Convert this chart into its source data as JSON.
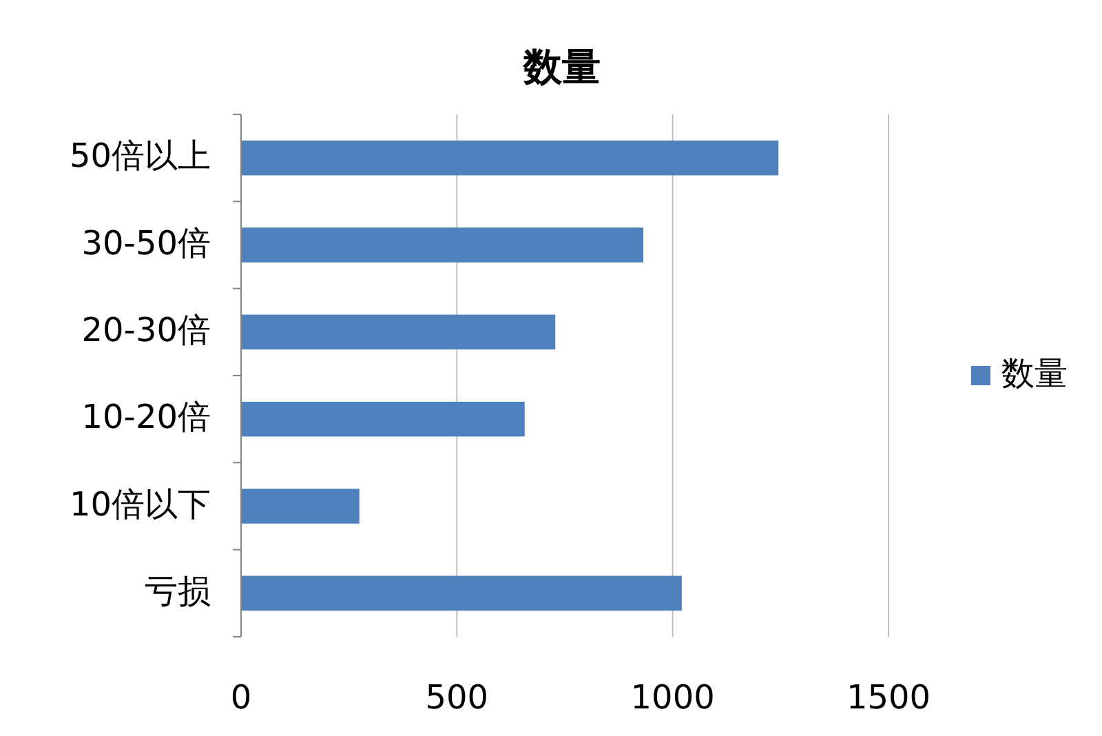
{
  "chart_data": {
    "type": "bar",
    "orientation": "horizontal",
    "title": "数量",
    "categories": [
      "50倍以上",
      "30-50倍",
      "20-30倍",
      "10-20倍",
      "10倍以下",
      "亏损"
    ],
    "series": [
      {
        "name": "数量",
        "color": "#4f81bd",
        "values": [
          1245,
          932,
          728,
          657,
          274,
          1021
        ]
      }
    ],
    "xlim": [
      0,
      1500
    ],
    "xticks": [
      0,
      500,
      1000,
      1500
    ],
    "grid": "x",
    "legend": "right"
  }
}
